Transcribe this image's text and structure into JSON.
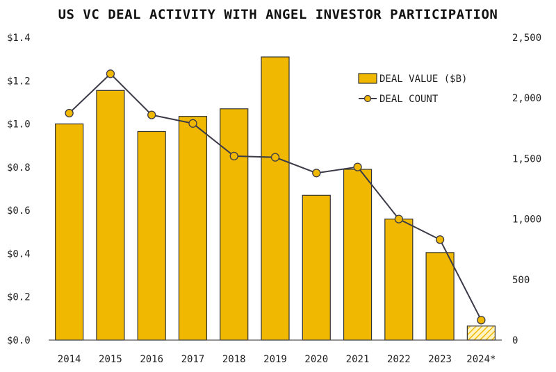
{
  "chart_data": {
    "type": "bar",
    "title": "US VC DEAL ACTIVITY WITH ANGEL INVESTOR PARTICIPATION",
    "categories": [
      "2014",
      "2015",
      "2016",
      "2017",
      "2018",
      "2019",
      "2020",
      "2021",
      "2022",
      "2023",
      "2024*"
    ],
    "series": [
      {
        "name": "DEAL VALUE ($B)",
        "type": "bar",
        "axis": "left",
        "values": [
          1.0,
          1.155,
          0.965,
          1.035,
          1.07,
          1.31,
          0.67,
          0.79,
          0.56,
          0.405,
          0.065
        ]
      },
      {
        "name": "DEAL COUNT",
        "type": "line",
        "axis": "right",
        "values": [
          1875,
          2200,
          1860,
          1790,
          1520,
          1510,
          1380,
          1430,
          1000,
          830,
          165
        ]
      }
    ],
    "partial_category": "2024*",
    "y_left": {
      "lim": [
        0,
        1.4
      ],
      "ticks": [
        "$0.0",
        "$0.2",
        "$0.4",
        "$0.6",
        "$0.8",
        "$1.0",
        "$1.2",
        "$1.4"
      ]
    },
    "y_right": {
      "lim": [
        0,
        2500
      ],
      "ticks": [
        "0",
        "500",
        "1,000",
        "1,500",
        "2,000",
        "2,500"
      ]
    },
    "grid": false,
    "legend_position": "top-right",
    "colors": {
      "bar": "#f0b800",
      "bar_stroke": "#333333",
      "line": "#3a3a48",
      "marker": "#f0b800"
    }
  }
}
